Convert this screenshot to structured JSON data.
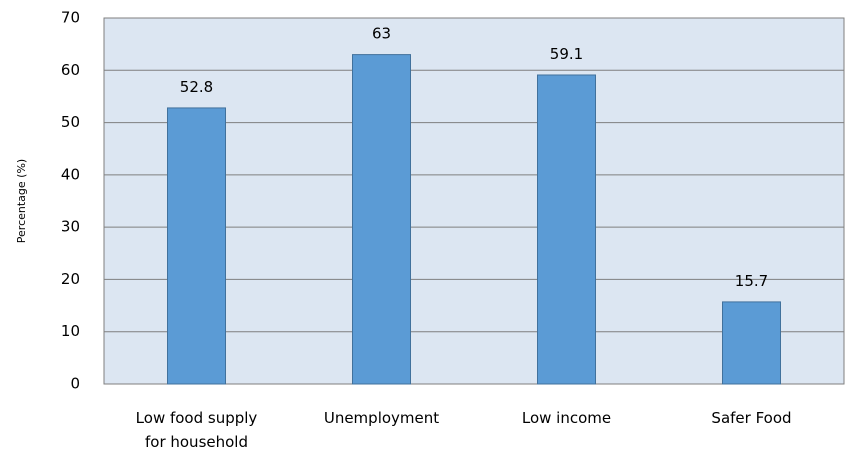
{
  "chart_data": {
    "type": "bar",
    "categories": [
      [
        "Low food supply",
        "for household"
      ],
      [
        "Unemployment"
      ],
      [
        "Low income"
      ],
      [
        "Safer Food"
      ]
    ],
    "values": [
      52.8,
      63,
      59.1,
      15.7
    ],
    "data_labels": [
      "52.8",
      "63",
      "59.1",
      "15.7"
    ],
    "ylabel": "Percentage (%)",
    "ylim": [
      0,
      70
    ],
    "yticks": [
      0,
      10,
      20,
      30,
      40,
      50,
      60,
      70
    ],
    "grid": true,
    "colors": {
      "bar_fill": "#5b9bd5",
      "bar_stroke": "#41719c",
      "plot_background": "#dce6f2",
      "gridline": "#7f7f7f",
      "axis": "#7f7f7f"
    }
  }
}
